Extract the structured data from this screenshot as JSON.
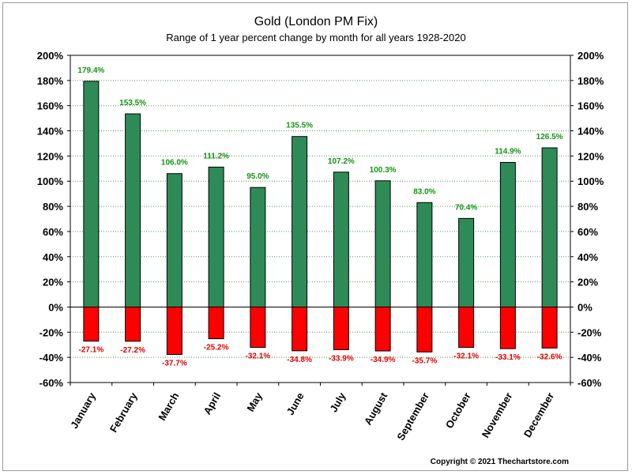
{
  "chart_data": {
    "type": "bar",
    "title": "Gold (London PM Fix)",
    "subtitle": "Range of 1 year percent change by month for all years 1928-2020",
    "categories": [
      "January",
      "February",
      "March",
      "April",
      "May",
      "June",
      "July",
      "August",
      "September",
      "October",
      "November",
      "December"
    ],
    "series": [
      {
        "name": "",
        "color": "#2e8b57",
        "values": [
          179.4,
          153.5,
          106.0,
          111.2,
          95.0,
          135.5,
          107.2,
          100.3,
          83.0,
          70.4,
          114.9,
          126.5
        ]
      },
      {
        "name": "",
        "color": "#ff0000",
        "values": [
          -27.1,
          -27.2,
          -37.7,
          -25.2,
          -32.1,
          -34.8,
          -33.9,
          -34.9,
          -35.7,
          -32.1,
          -33.1,
          -32.6
        ]
      }
    ],
    "data_labels_pos": [
      "179.4%",
      "153.5%",
      "106.0%",
      "111.2%",
      "95.0%",
      "135.5%",
      "107.2%",
      "100.3%",
      "83.0%",
      "70.4%",
      "114.9%",
      "126.5%"
    ],
    "data_labels_neg": [
      "-27.1%",
      "-27.2%",
      "-37.7%",
      "-25.2%",
      "-32.1%",
      "-34.8%",
      "-33.9%",
      "-34.9%",
      "-35.7%",
      "-32.1%",
      "-33.1%",
      "-32.6%"
    ],
    "ylim": [
      -60,
      200
    ],
    "yticks": [
      200,
      180,
      160,
      140,
      120,
      100,
      80,
      60,
      40,
      20,
      0,
      -20,
      -40,
      -60
    ],
    "ytick_labels": [
      "200%",
      "180%",
      "160%",
      "140%",
      "120%",
      "100%",
      "80%",
      "60%",
      "40%",
      "20%",
      "0%",
      "-20%",
      "-40%",
      "-60%"
    ],
    "y_axis_both_sides": true,
    "grid": "horizontal dotted",
    "label_colors": {
      "positive": "#129412",
      "negative": "#e00000"
    }
  },
  "footer": {
    "copyright": "Copyright © 2021 Thechartstore.com"
  }
}
